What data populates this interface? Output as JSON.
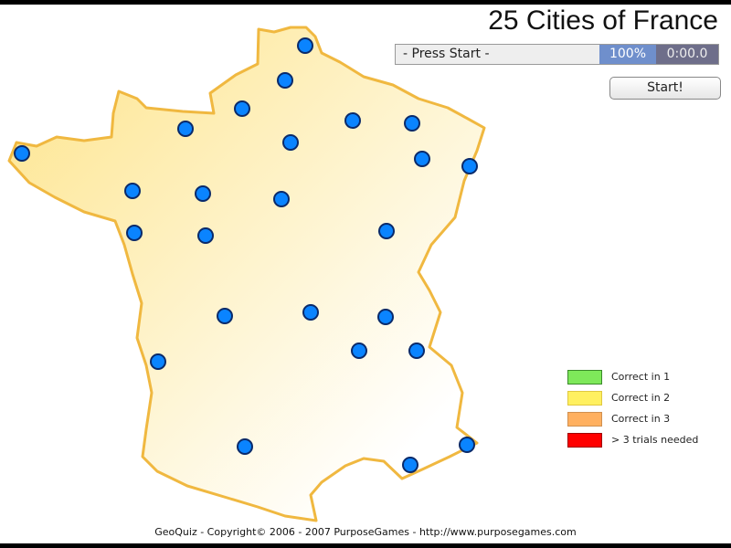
{
  "title": "25 Cities of France",
  "status": {
    "message": "- Press Start -",
    "progress": "100%",
    "timer": "0:00.0"
  },
  "start_label": "Start!",
  "legend": [
    {
      "label": "Correct in 1",
      "color": "#7ee85a",
      "border": "#3a8a2a"
    },
    {
      "label": "Correct in 2",
      "color": "#fff060",
      "border": "#e0c840"
    },
    {
      "label": "Correct in 3",
      "color": "#ffb060",
      "border": "#d09050"
    },
    {
      "label": "> 3 trials needed",
      "color": "#ff0000",
      "border": "#a00000"
    }
  ],
  "colors": {
    "city": "#0a84ff",
    "outline": "#f0b840",
    "fill_start": "#fde48a",
    "fill_end": "#ffffff"
  },
  "cities_count": 25,
  "footer": "GeoQuiz - Copyright© 2006 - 2007 PurposeGames - http://www.purposegames.com"
}
